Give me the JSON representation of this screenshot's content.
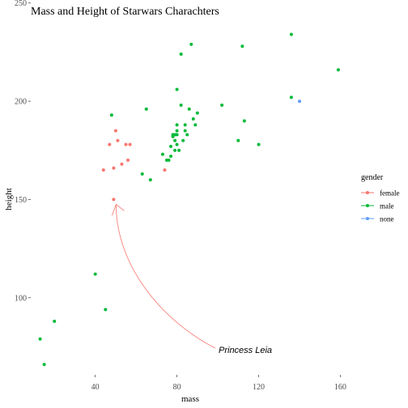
{
  "chart_data": {
    "type": "scatter",
    "title": "Mass and Height of Starwars Charachters",
    "xlabel": "mass",
    "ylabel": "height",
    "xlim": [
      10,
      163
    ],
    "ylim": [
      62,
      240
    ],
    "x_ticks": [
      40,
      80,
      120,
      160
    ],
    "y_ticks": [
      100,
      150,
      200,
      250
    ],
    "grid": false,
    "legend": {
      "title": "gender",
      "position": "right",
      "entries": [
        {
          "label": "female",
          "color": "#F8766D"
        },
        {
          "label": "male",
          "color": "#00BA38"
        },
        {
          "label": "none",
          "color": "#619CFF"
        }
      ]
    },
    "series": [
      {
        "name": "female",
        "color": "#F8766D",
        "points": [
          [
            44,
            165
          ],
          [
            47,
            178
          ],
          [
            49,
            150
          ],
          [
            49,
            166
          ],
          [
            50,
            185
          ],
          [
            51,
            180
          ],
          [
            53,
            168
          ],
          [
            55,
            178
          ],
          [
            56,
            170
          ],
          [
            57,
            178
          ],
          [
            74,
            165
          ]
        ]
      },
      {
        "name": "male",
        "color": "#00BA38",
        "points": [
          [
            13,
            79
          ],
          [
            15,
            66
          ],
          [
            20,
            88
          ],
          [
            40,
            112
          ],
          [
            45,
            94
          ],
          [
            48,
            193
          ],
          [
            63,
            163
          ],
          [
            65,
            196
          ],
          [
            67,
            160
          ],
          [
            73,
            173
          ],
          [
            75,
            170
          ],
          [
            76,
            170
          ],
          [
            77,
            172
          ],
          [
            77,
            177
          ],
          [
            78,
            182
          ],
          [
            78,
            183
          ],
          [
            79,
            175
          ],
          [
            79,
            180
          ],
          [
            79,
            183
          ],
          [
            80,
            185
          ],
          [
            80,
            188
          ],
          [
            80,
            178
          ],
          [
            80,
            206
          ],
          [
            80,
            183
          ],
          [
            81,
            175
          ],
          [
            82,
            198
          ],
          [
            82,
            224
          ],
          [
            83,
            180
          ],
          [
            84,
            185
          ],
          [
            84,
            188
          ],
          [
            85,
            183
          ],
          [
            86,
            196
          ],
          [
            87,
            229
          ],
          [
            88,
            191
          ],
          [
            89,
            188
          ],
          [
            90,
            194
          ],
          [
            102,
            198
          ],
          [
            110,
            180
          ],
          [
            112,
            228
          ],
          [
            113,
            190
          ],
          [
            120,
            178
          ],
          [
            136,
            234
          ],
          [
            136,
            202
          ],
          [
            159,
            216
          ]
        ]
      },
      {
        "name": "none",
        "color": "#619CFF",
        "points": [
          [
            140,
            200
          ]
        ]
      }
    ],
    "annotation": {
      "text": "Princess Leia",
      "point": [
        49,
        150
      ],
      "color": "#F8766D"
    }
  }
}
